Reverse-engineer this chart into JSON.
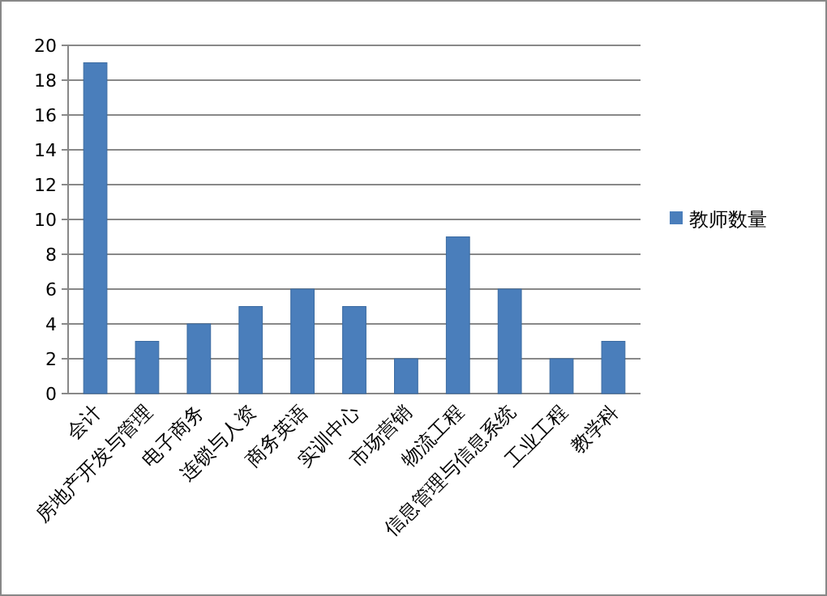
{
  "chart_data": {
    "type": "bar",
    "categories": [
      "会计",
      "房地产开发与管理",
      "电子商务",
      "连锁与人资",
      "商务英语",
      "实训中心",
      "市场营销",
      "物流工程",
      "信息管理与信息系统",
      "工业工程",
      "教学科"
    ],
    "series": [
      {
        "name": "教师数量",
        "color": "#4a7ebb",
        "values": [
          19,
          3,
          4,
          5,
          6,
          5,
          2,
          9,
          6,
          2,
          3
        ]
      }
    ],
    "ylim": [
      0,
      20
    ],
    "yticks": [
      0,
      2,
      4,
      6,
      8,
      10,
      12,
      14,
      16,
      18,
      20
    ],
    "grid": "y",
    "legend": "right"
  }
}
